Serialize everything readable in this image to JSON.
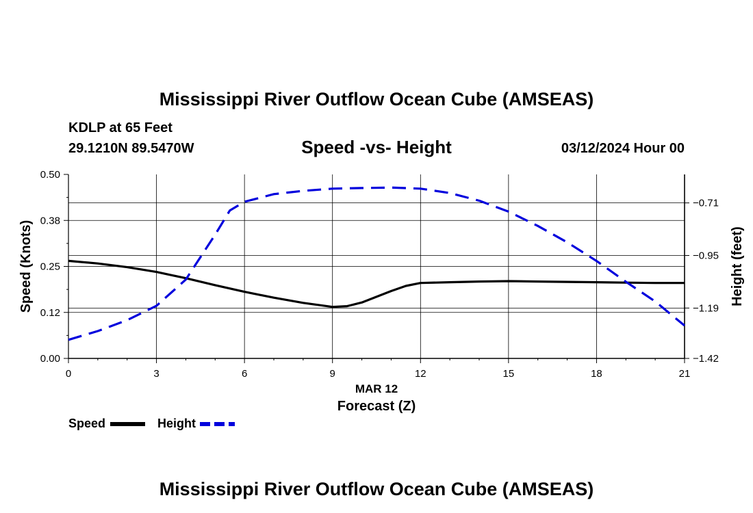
{
  "page_title": "Mississippi River Outflow Ocean Cube (AMSEAS)",
  "footer_title": "Mississippi River Outflow Ocean Cube (AMSEAS)",
  "station": "KDLP at 65 Feet",
  "coords": "29.1210N  89.5470W",
  "datetime": "03/12/2024 Hour 00",
  "chart_data": {
    "type": "line",
    "title": "Speed -vs- Height",
    "xlabel": "Forecast (Z)",
    "xsublabel": "MAR 12",
    "ylabel": "Speed (Knots)",
    "y2label": "Height (feet)",
    "xlim": [
      0,
      21
    ],
    "ylim": [
      0.0,
      0.5
    ],
    "y2lim": [
      -1.42,
      -0.58
    ],
    "xticks": [
      0,
      3,
      6,
      9,
      12,
      15,
      18,
      21
    ],
    "xtick_labels": [
      "0",
      "3",
      "6",
      "9",
      "12",
      "15",
      "18",
      "21"
    ],
    "yticks": [
      0.0,
      0.125,
      0.25,
      0.375,
      0.5
    ],
    "ytick_labels": [
      "0.00",
      "0.12",
      "0.25",
      "0.38",
      "0.50"
    ],
    "y2ticks": [
      -1.42,
      -1.19,
      -0.95,
      -0.71
    ],
    "y2tick_labels": [
      "−1.42",
      "−1.19",
      "−0.95",
      "−0.71"
    ],
    "grid": true,
    "series": [
      {
        "name": "Speed",
        "axis": "left",
        "color": "#000000",
        "style": "solid",
        "x": [
          0,
          1,
          2,
          3,
          4,
          5,
          6,
          7,
          8,
          9,
          9.5,
          10,
          11,
          11.5,
          12,
          13,
          14,
          15,
          16,
          17,
          18,
          19,
          20,
          21
        ],
        "values": [
          0.265,
          0.258,
          0.248,
          0.235,
          0.218,
          0.199,
          0.181,
          0.165,
          0.151,
          0.14,
          0.142,
          0.152,
          0.183,
          0.197,
          0.205,
          0.207,
          0.209,
          0.21,
          0.209,
          0.208,
          0.207,
          0.206,
          0.205,
          0.205
        ]
      },
      {
        "name": "Height",
        "axis": "right",
        "color": "#0000dd",
        "style": "dashed",
        "x": [
          0,
          1,
          2,
          3,
          4,
          5,
          5.5,
          6,
          7,
          8,
          9,
          10,
          11,
          12,
          13,
          14,
          15,
          16,
          17,
          18,
          19,
          20,
          21
        ],
        "values": [
          -1.335,
          -1.295,
          -1.245,
          -1.18,
          -1.06,
          -0.855,
          -0.745,
          -0.705,
          -0.67,
          -0.655,
          -0.645,
          -0.642,
          -0.64,
          -0.645,
          -0.665,
          -0.7,
          -0.75,
          -0.815,
          -0.89,
          -0.975,
          -1.07,
          -1.16,
          -1.27
        ]
      }
    ],
    "legend": [
      {
        "label": "Speed",
        "color": "#000000",
        "style": "solid"
      },
      {
        "label": "Height",
        "color": "#0000dd",
        "style": "dashed"
      }
    ],
    "legend_position": "bottom-left"
  }
}
